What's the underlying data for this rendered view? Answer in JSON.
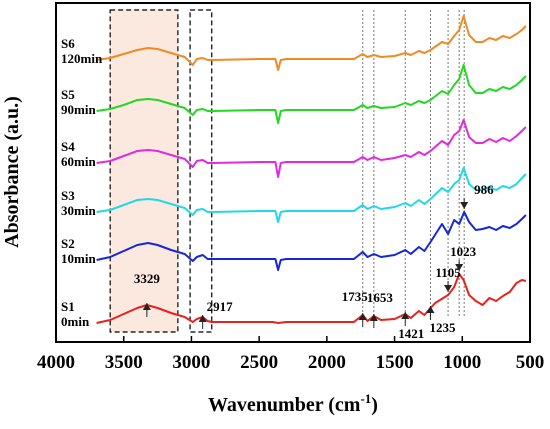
{
  "chart_data": {
    "type": "line",
    "title": "",
    "xlabel": "Wavenumber (cm",
    "xlabel_sup": "-1",
    "xlabel_close": ")",
    "ylabel": "Absorbance (a.u.)",
    "xlim": [
      4000,
      500
    ],
    "x_reversed": true,
    "xticks": [
      4000,
      3500,
      3000,
      2500,
      2000,
      1500,
      1000,
      500
    ],
    "grid": false,
    "legend": "none",
    "series": [
      {
        "code": "S1",
        "time": "0min",
        "color": "#e8221b",
        "offset": 0.2,
        "points": [
          [
            3700,
            2
          ],
          [
            3600,
            5
          ],
          [
            3500,
            11
          ],
          [
            3400,
            17
          ],
          [
            3329,
            20
          ],
          [
            3250,
            17
          ],
          [
            3150,
            12
          ],
          [
            3050,
            8
          ],
          [
            2990,
            3
          ],
          [
            2960,
            6
          ],
          [
            2917,
            8
          ],
          [
            2880,
            4
          ],
          [
            2850,
            3
          ],
          [
            2700,
            3
          ],
          [
            2500,
            3
          ],
          [
            2400,
            3
          ],
          [
            2360,
            2
          ],
          [
            2300,
            3
          ],
          [
            2000,
            3
          ],
          [
            1800,
            3
          ],
          [
            1735,
            10
          ],
          [
            1700,
            4
          ],
          [
            1653,
            9
          ],
          [
            1600,
            5
          ],
          [
            1500,
            6
          ],
          [
            1421,
            11
          ],
          [
            1380,
            7
          ],
          [
            1320,
            14
          ],
          [
            1280,
            10
          ],
          [
            1235,
            17
          ],
          [
            1200,
            22
          ],
          [
            1105,
            30
          ],
          [
            1060,
            38
          ],
          [
            1023,
            51
          ],
          [
            990,
            45
          ],
          [
            950,
            30
          ],
          [
            900,
            24
          ],
          [
            850,
            20
          ],
          [
            800,
            27
          ],
          [
            750,
            24
          ],
          [
            700,
            29
          ],
          [
            650,
            33
          ],
          [
            600,
            42
          ],
          [
            560,
            45
          ],
          [
            530,
            44
          ]
        ]
      },
      {
        "code": "S2",
        "time": "10min",
        "color": "#1428d8",
        "offset": 0.2,
        "points": [
          [
            3700,
            2
          ],
          [
            3600,
            5
          ],
          [
            3500,
            11
          ],
          [
            3400,
            17
          ],
          [
            3320,
            19
          ],
          [
            3250,
            17
          ],
          [
            3150,
            12
          ],
          [
            3050,
            8
          ],
          [
            2990,
            1
          ],
          [
            2960,
            5
          ],
          [
            2917,
            7
          ],
          [
            2880,
            3
          ],
          [
            2850,
            3
          ],
          [
            2500,
            3
          ],
          [
            2380,
            3
          ],
          [
            2360,
            -8
          ],
          [
            2340,
            2
          ],
          [
            2300,
            3
          ],
          [
            2000,
            3
          ],
          [
            1800,
            3
          ],
          [
            1735,
            10
          ],
          [
            1700,
            5
          ],
          [
            1653,
            8
          ],
          [
            1600,
            5
          ],
          [
            1500,
            7
          ],
          [
            1421,
            12
          ],
          [
            1380,
            8
          ],
          [
            1320,
            15
          ],
          [
            1280,
            11
          ],
          [
            1235,
            20
          ],
          [
            1150,
            38
          ],
          [
            1105,
            28
          ],
          [
            1060,
            42
          ],
          [
            1023,
            38
          ],
          [
            986,
            50
          ],
          [
            950,
            40
          ],
          [
            900,
            32
          ],
          [
            850,
            33
          ],
          [
            800,
            35
          ],
          [
            750,
            32
          ],
          [
            700,
            36
          ],
          [
            650,
            34
          ],
          [
            600,
            38
          ],
          [
            560,
            43
          ],
          [
            530,
            47
          ]
        ]
      },
      {
        "code": "S3",
        "time": "30min",
        "color": "#22d8e8",
        "offset": 0.2,
        "points": [
          [
            3700,
            2
          ],
          [
            3600,
            4
          ],
          [
            3500,
            9
          ],
          [
            3400,
            14
          ],
          [
            3320,
            15
          ],
          [
            3250,
            14
          ],
          [
            3150,
            10
          ],
          [
            3050,
            6
          ],
          [
            2990,
            -1
          ],
          [
            2960,
            4
          ],
          [
            2917,
            5
          ],
          [
            2880,
            2
          ],
          [
            2850,
            2
          ],
          [
            2500,
            3
          ],
          [
            2380,
            3
          ],
          [
            2360,
            -8
          ],
          [
            2340,
            2
          ],
          [
            2300,
            3
          ],
          [
            2000,
            3
          ],
          [
            1800,
            3
          ],
          [
            1735,
            9
          ],
          [
            1700,
            5
          ],
          [
            1653,
            8
          ],
          [
            1600,
            5
          ],
          [
            1500,
            7
          ],
          [
            1421,
            11
          ],
          [
            1380,
            8
          ],
          [
            1320,
            14
          ],
          [
            1280,
            10
          ],
          [
            1235,
            15
          ],
          [
            1150,
            26
          ],
          [
            1105,
            22
          ],
          [
            1060,
            30
          ],
          [
            1023,
            34
          ],
          [
            990,
            46
          ],
          [
            950,
            30
          ],
          [
            900,
            24
          ],
          [
            850,
            24
          ],
          [
            800,
            27
          ],
          [
            750,
            24
          ],
          [
            700,
            28
          ],
          [
            650,
            26
          ],
          [
            600,
            30
          ],
          [
            560,
            36
          ],
          [
            530,
            40
          ]
        ]
      },
      {
        "code": "S4",
        "time": "60min",
        "color": "#e02ae0",
        "offset": 0.2,
        "points": [
          [
            3700,
            2
          ],
          [
            3600,
            4
          ],
          [
            3500,
            9
          ],
          [
            3400,
            14
          ],
          [
            3320,
            15
          ],
          [
            3250,
            14
          ],
          [
            3150,
            10
          ],
          [
            3050,
            6
          ],
          [
            2990,
            -2
          ],
          [
            2960,
            4
          ],
          [
            2917,
            5
          ],
          [
            2880,
            2
          ],
          [
            2850,
            2
          ],
          [
            2500,
            3
          ],
          [
            2380,
            3
          ],
          [
            2360,
            -12
          ],
          [
            2340,
            2
          ],
          [
            2300,
            3
          ],
          [
            2000,
            3
          ],
          [
            1800,
            3
          ],
          [
            1735,
            8
          ],
          [
            1700,
            5
          ],
          [
            1653,
            8
          ],
          [
            1600,
            5
          ],
          [
            1500,
            7
          ],
          [
            1421,
            10
          ],
          [
            1380,
            8
          ],
          [
            1320,
            13
          ],
          [
            1280,
            10
          ],
          [
            1235,
            14
          ],
          [
            1150,
            24
          ],
          [
            1105,
            20
          ],
          [
            1060,
            30
          ],
          [
            1023,
            34
          ],
          [
            990,
            45
          ],
          [
            950,
            28
          ],
          [
            900,
            22
          ],
          [
            850,
            22
          ],
          [
            800,
            26
          ],
          [
            750,
            23
          ],
          [
            700,
            27
          ],
          [
            650,
            24
          ],
          [
            600,
            29
          ],
          [
            560,
            34
          ],
          [
            530,
            38
          ]
        ]
      },
      {
        "code": "S5",
        "time": "90min",
        "color": "#22d822",
        "offset": 0.2,
        "points": [
          [
            3700,
            2
          ],
          [
            3600,
            4
          ],
          [
            3500,
            8
          ],
          [
            3400,
            13
          ],
          [
            3320,
            14
          ],
          [
            3250,
            13
          ],
          [
            3150,
            9
          ],
          [
            3050,
            5
          ],
          [
            2990,
            -2
          ],
          [
            2960,
            3
          ],
          [
            2917,
            4
          ],
          [
            2880,
            2
          ],
          [
            2850,
            2
          ],
          [
            2500,
            3
          ],
          [
            2380,
            3
          ],
          [
            2360,
            -10
          ],
          [
            2340,
            2
          ],
          [
            2300,
            3
          ],
          [
            2000,
            3
          ],
          [
            1800,
            3
          ],
          [
            1735,
            8
          ],
          [
            1700,
            5
          ],
          [
            1653,
            7
          ],
          [
            1600,
            5
          ],
          [
            1500,
            6
          ],
          [
            1421,
            10
          ],
          [
            1380,
            8
          ],
          [
            1320,
            12
          ],
          [
            1280,
            10
          ],
          [
            1235,
            13
          ],
          [
            1150,
            22
          ],
          [
            1105,
            19
          ],
          [
            1060,
            28
          ],
          [
            1023,
            34
          ],
          [
            990,
            48
          ],
          [
            950,
            28
          ],
          [
            900,
            20
          ],
          [
            850,
            20
          ],
          [
            800,
            24
          ],
          [
            750,
            22
          ],
          [
            700,
            26
          ],
          [
            650,
            24
          ],
          [
            600,
            28
          ],
          [
            560,
            33
          ],
          [
            530,
            37
          ]
        ]
      },
      {
        "code": "S6",
        "time": "120min",
        "color": "#f08a22",
        "offset": 0.2,
        "points": [
          [
            3700,
            2
          ],
          [
            3600,
            4
          ],
          [
            3500,
            8
          ],
          [
            3400,
            12
          ],
          [
            3320,
            14
          ],
          [
            3250,
            13
          ],
          [
            3150,
            9
          ],
          [
            3050,
            5
          ],
          [
            2990,
            -3
          ],
          [
            2960,
            3
          ],
          [
            2917,
            4
          ],
          [
            2880,
            2
          ],
          [
            2850,
            2
          ],
          [
            2500,
            3
          ],
          [
            2380,
            3
          ],
          [
            2360,
            -8
          ],
          [
            2340,
            2
          ],
          [
            2300,
            3
          ],
          [
            2000,
            3
          ],
          [
            1800,
            3
          ],
          [
            1735,
            8
          ],
          [
            1700,
            5
          ],
          [
            1653,
            7
          ],
          [
            1600,
            5
          ],
          [
            1500,
            6
          ],
          [
            1421,
            9
          ],
          [
            1380,
            7
          ],
          [
            1320,
            11
          ],
          [
            1280,
            9
          ],
          [
            1235,
            12
          ],
          [
            1150,
            20
          ],
          [
            1105,
            18
          ],
          [
            1060,
            26
          ],
          [
            1023,
            32
          ],
          [
            990,
            46
          ],
          [
            950,
            27
          ],
          [
            900,
            20
          ],
          [
            850,
            20
          ],
          [
            800,
            24
          ],
          [
            750,
            22
          ],
          [
            700,
            26
          ],
          [
            650,
            24
          ],
          [
            600,
            28
          ],
          [
            560,
            32
          ],
          [
            530,
            36
          ]
        ]
      }
    ],
    "highlight_regions": [
      {
        "from": 3600,
        "to": 3100,
        "fill": "#fbe8df"
      },
      {
        "from": 3010,
        "to": 2850,
        "fill": "none"
      }
    ],
    "reference_lines": [
      1735,
      1653,
      1421,
      1235,
      1105,
      1023,
      986
    ],
    "peak_labels": [
      {
        "text": "3329",
        "wn": 3329
      },
      {
        "text": "2917",
        "wn": 2917
      },
      {
        "text": "1735",
        "wn": 1735
      },
      {
        "text": "1653",
        "wn": 1653
      },
      {
        "text": "1421",
        "wn": 1421
      },
      {
        "text": "1235",
        "wn": 1235
      },
      {
        "text": "1105",
        "wn": 1105
      },
      {
        "text": "1023",
        "wn": 1023
      },
      {
        "text": "986",
        "wn": 986
      }
    ]
  }
}
